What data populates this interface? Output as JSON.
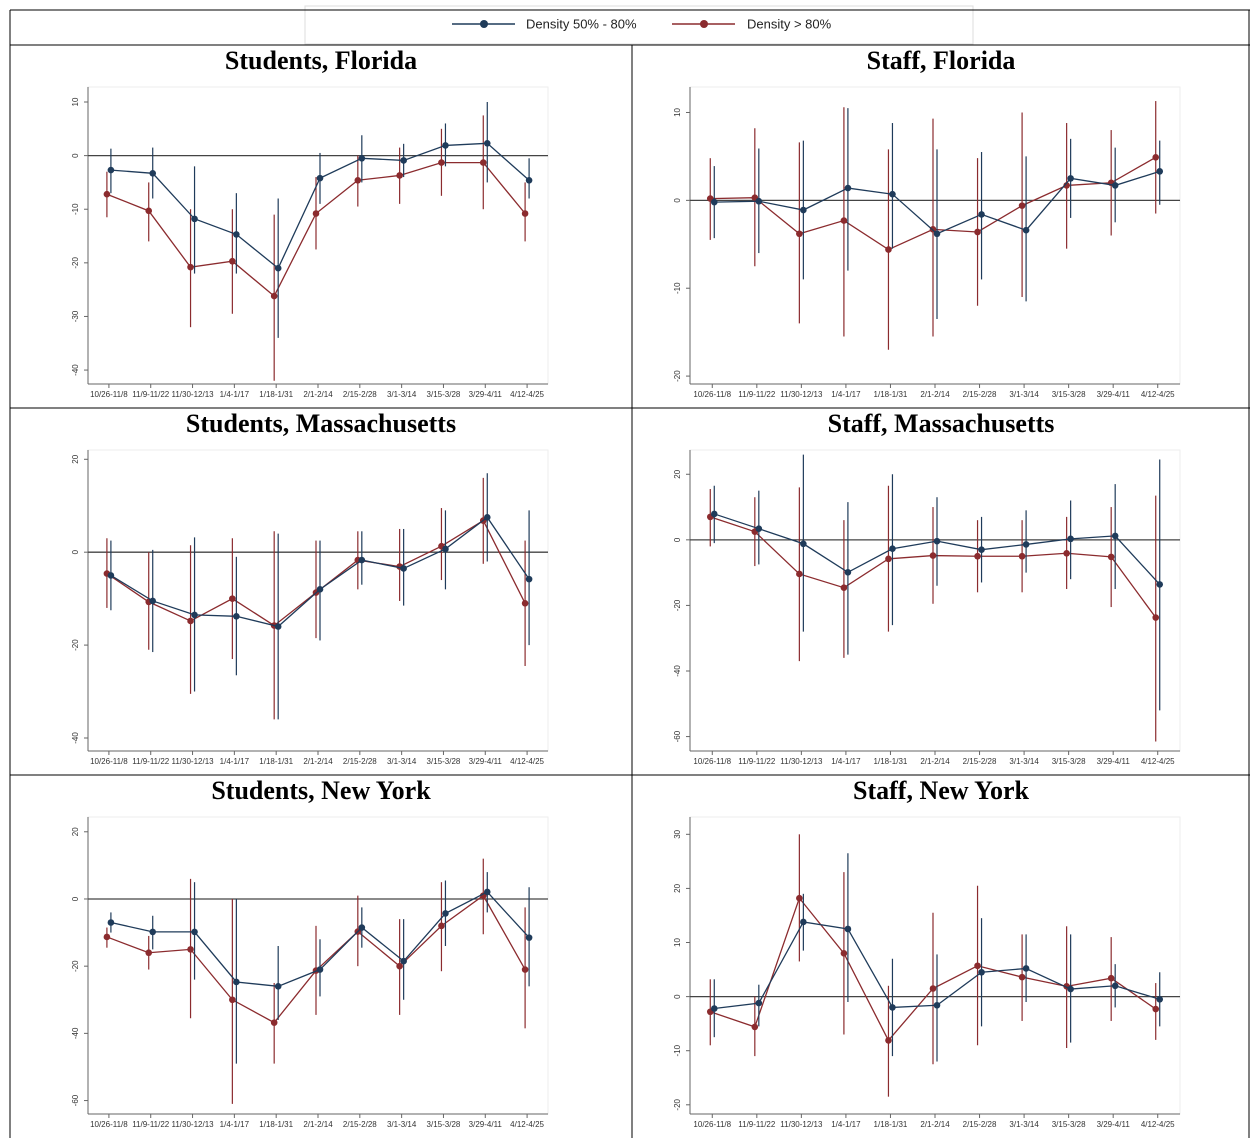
{
  "chart_data": [
    {
      "type": "line",
      "title": "Students, Florida",
      "categories": [
        "10/26-11/8",
        "11/9-11/22",
        "11/30-12/13",
        "1/4-1/17",
        "1/18-1/31",
        "2/1-2/14",
        "2/15-2/28",
        "3/1-3/14",
        "3/15-3/28",
        "3/29-4/11",
        "4/12-4/25"
      ],
      "ylim": [
        -42.6,
        12.8
      ],
      "yticks": [
        10,
        0,
        -10,
        -20,
        -30,
        -40
      ],
      "series": [
        {
          "name": "Density 50% - 80%",
          "color": "#1f3b5a",
          "values": [
            -2.7,
            -3.3,
            -11.8,
            -14.7,
            -21,
            -4.2,
            -0.5,
            -0.9,
            1.9,
            2.3,
            -4.6
          ],
          "lower": [
            -7,
            -8,
            -22,
            -22,
            -34,
            -9,
            -5,
            -4,
            -2,
            -5,
            -8
          ],
          "upper": [
            1.3,
            1.5,
            -2,
            -7,
            -8,
            0.5,
            3.8,
            2.2,
            6,
            10,
            -0.5
          ]
        },
        {
          "name": "Density > 80%",
          "color": "#8b2b2e",
          "values": [
            -7.2,
            -10.3,
            -20.8,
            -19.7,
            -26.2,
            -10.8,
            -4.6,
            -3.7,
            -1.3,
            -1.3,
            -10.8
          ],
          "lower": [
            -11.5,
            -16,
            -32,
            -29.5,
            -42,
            -17.5,
            -9.5,
            -9,
            -7.5,
            -10,
            -16
          ],
          "upper": [
            -3,
            -5,
            -10,
            -10,
            -11,
            -4,
            0,
            1.5,
            5,
            7.5,
            -5
          ]
        }
      ]
    },
    {
      "type": "line",
      "title": "Staff, Florida",
      "categories": [
        "10/26-11/8",
        "11/9-11/22",
        "11/30-12/13",
        "1/4-1/17",
        "1/18-1/31",
        "2/1-2/14",
        "2/15-2/28",
        "3/1-3/14",
        "3/15-3/28",
        "3/29-4/11",
        "4/12-4/25"
      ],
      "ylim": [
        -20.9,
        12.9
      ],
      "yticks": [
        10,
        0,
        -10,
        -20
      ],
      "series": [
        {
          "name": "Density 50% - 80%",
          "color": "#1f3b5a",
          "values": [
            -0.2,
            -0.1,
            -1.1,
            1.4,
            0.7,
            -3.8,
            -1.6,
            -3.4,
            2.5,
            1.7,
            3.3
          ],
          "lower": [
            -4.3,
            -6,
            -9,
            -8,
            -5.5,
            -13.5,
            -9,
            -11.5,
            -2,
            -2.5,
            -0.5
          ],
          "upper": [
            3.9,
            5.9,
            6.8,
            10.5,
            8.8,
            5.8,
            5.5,
            5,
            7,
            6,
            6.8
          ]
        },
        {
          "name": "Density > 80%",
          "color": "#8b2b2e",
          "values": [
            0.2,
            0.3,
            -3.8,
            -2.3,
            -5.6,
            -3.3,
            -3.6,
            -0.6,
            1.7,
            2,
            4.9
          ],
          "lower": [
            -4.5,
            -7.5,
            -14,
            -15.5,
            -17,
            -15.5,
            -12,
            -11,
            -5.5,
            -4,
            -1.5
          ],
          "upper": [
            4.8,
            8.2,
            6.6,
            10.6,
            5.8,
            9.3,
            4.8,
            10,
            8.8,
            8,
            11.3
          ]
        }
      ]
    },
    {
      "type": "line",
      "title": "Students, Massachusetts",
      "categories": [
        "10/26-11/8",
        "11/9-11/22",
        "11/30-12/13",
        "1/4-1/17",
        "1/18-1/31",
        "2/1-2/14",
        "2/15-2/28",
        "3/1-3/14",
        "3/15-3/28",
        "3/29-4/11",
        "4/12-4/25"
      ],
      "ylim": [
        -42.8,
        22
      ],
      "yticks": [
        20,
        0,
        -20,
        -40
      ],
      "series": [
        {
          "name": "Density 50% - 80%",
          "color": "#1f3b5a",
          "values": [
            -5,
            -10.5,
            -13.5,
            -13.8,
            -16,
            -8,
            -1.7,
            -3.5,
            0.7,
            7.5,
            -5.8
          ],
          "lower": [
            -12.5,
            -21.5,
            -30,
            -26.5,
            -36,
            -19,
            -7,
            -11.5,
            -8,
            -2,
            -20
          ],
          "upper": [
            2.5,
            0.5,
            3.2,
            -1,
            4,
            2.5,
            4.5,
            5,
            9,
            17,
            9
          ]
        },
        {
          "name": "Density > 80%",
          "color": "#8b2b2e",
          "values": [
            -4.6,
            -10.7,
            -14.8,
            -10,
            -15.8,
            -8.7,
            -1.7,
            -3.1,
            1.3,
            6.8,
            -11
          ],
          "lower": [
            -12,
            -21,
            -30.5,
            -23,
            -36,
            -18.5,
            -8,
            -10.5,
            -6,
            -2.5,
            -24.5
          ],
          "upper": [
            3,
            0,
            1.5,
            3,
            4.5,
            2.5,
            4.5,
            5,
            9.5,
            16,
            2.5
          ]
        }
      ]
    },
    {
      "type": "line",
      "title": "Staff, Massachusetts",
      "categories": [
        "10/26-11/8",
        "11/9-11/22",
        "11/30-12/13",
        "1/4-1/17",
        "1/18-1/31",
        "2/1-2/14",
        "2/15-2/28",
        "3/1-3/14",
        "3/15-3/28",
        "3/29-4/11",
        "4/12-4/25"
      ],
      "ylim": [
        -64.4,
        27.4
      ],
      "yticks": [
        20,
        0,
        -20,
        -40,
        -60
      ],
      "series": [
        {
          "name": "Density 50% - 80%",
          "color": "#1f3b5a",
          "values": [
            7.9,
            3.4,
            -1.2,
            -9.9,
            -2.7,
            -0.4,
            -3,
            -1.4,
            0.3,
            1.2,
            -13.6
          ],
          "lower": [
            -1,
            -7.5,
            -28,
            -35,
            -26,
            -14,
            -13,
            -10,
            -12,
            -15,
            -52
          ],
          "upper": [
            16.5,
            15,
            26,
            11.5,
            20,
            13,
            7,
            9,
            12,
            17,
            24.5
          ]
        },
        {
          "name": "Density > 80%",
          "color": "#8b2b2e",
          "values": [
            7,
            2.5,
            -10.4,
            -14.6,
            -5.8,
            -4.8,
            -5,
            -5,
            -4.1,
            -5.2,
            -23.7
          ],
          "lower": [
            -2,
            -8,
            -37,
            -36,
            -28,
            -19.5,
            -16,
            -16,
            -15,
            -20.5,
            -61.5
          ],
          "upper": [
            15.5,
            13,
            16,
            6,
            16.5,
            10,
            6,
            6,
            7,
            10,
            13.5
          ]
        }
      ]
    },
    {
      "type": "line",
      "title": "Students, New York",
      "categories": [
        "10/26-11/8",
        "11/9-11/22",
        "11/30-12/13",
        "1/4-1/17",
        "1/18-1/31",
        "2/1-2/14",
        "2/15-2/28",
        "3/1-3/14",
        "3/15-3/28",
        "3/29-4/11",
        "4/12-4/25"
      ],
      "ylim": [
        -64,
        24.4
      ],
      "yticks": [
        20,
        0,
        -20,
        -40,
        -60
      ],
      "series": [
        {
          "name": "Density 50% - 80%",
          "color": "#1f3b5a",
          "values": [
            -7,
            -9.8,
            -9.8,
            -24.7,
            -26,
            -21,
            -8.5,
            -18.5,
            -4.3,
            2.1,
            -11.5
          ],
          "lower": [
            -10,
            -15,
            -24,
            -49,
            -36,
            -29,
            -14.5,
            -30,
            -14,
            -4,
            -26
          ],
          "upper": [
            -4,
            -5,
            5,
            0,
            -14,
            -12,
            -2.5,
            -6,
            5.5,
            8,
            3.5
          ]
        },
        {
          "name": "Density > 80%",
          "color": "#8b2b2e",
          "values": [
            -11.3,
            -16,
            -15,
            -30,
            -36.8,
            -21.3,
            -9.7,
            -20,
            -8,
            1,
            -21
          ],
          "lower": [
            -14.5,
            -21,
            -35.5,
            -61,
            -49,
            -34.5,
            -20,
            -34.5,
            -21.5,
            -10.5,
            -38.5
          ],
          "upper": [
            -8.5,
            -11,
            6,
            0,
            -25,
            -8,
            1,
            -6,
            5,
            12,
            -2.5
          ]
        }
      ]
    },
    {
      "type": "line",
      "title": "Staff, New York",
      "categories": [
        "10/26-11/8",
        "11/9-11/22",
        "11/30-12/13",
        "1/4-1/17",
        "1/18-1/31",
        "2/1-2/14",
        "2/15-2/28",
        "3/1-3/14",
        "3/15-3/28",
        "3/29-4/11",
        "4/12-4/25"
      ],
      "ylim": [
        -21.7,
        33.2
      ],
      "yticks": [
        30,
        20,
        10,
        0,
        -10,
        -20
      ],
      "series": [
        {
          "name": "Density 50% - 80%",
          "color": "#1f3b5a",
          "values": [
            -2.2,
            -1.2,
            13.8,
            12.5,
            -2,
            -1.6,
            4.5,
            5.2,
            1.4,
            2,
            -0.5
          ],
          "lower": [
            -7.5,
            -5.5,
            8.5,
            -1,
            -11,
            -12,
            -5.5,
            -1,
            -8.5,
            -2,
            -5.5
          ],
          "upper": [
            3.2,
            2.2,
            19,
            26.5,
            7,
            7.8,
            14.5,
            11.5,
            11.5,
            6,
            4.5
          ]
        },
        {
          "name": "Density > 80%",
          "color": "#8b2b2e",
          "values": [
            -2.8,
            -5.6,
            18.2,
            8,
            -8.1,
            1.5,
            5.7,
            3.6,
            1.9,
            3.4,
            -2.3
          ],
          "lower": [
            -9,
            -11,
            6.5,
            -7,
            -18.5,
            -12.5,
            -9,
            -4.5,
            -9.5,
            -4.5,
            -8
          ],
          "upper": [
            3.2,
            0,
            30,
            23,
            2,
            15.5,
            20.5,
            11.5,
            13,
            11,
            2.5
          ]
        }
      ]
    }
  ]
}
